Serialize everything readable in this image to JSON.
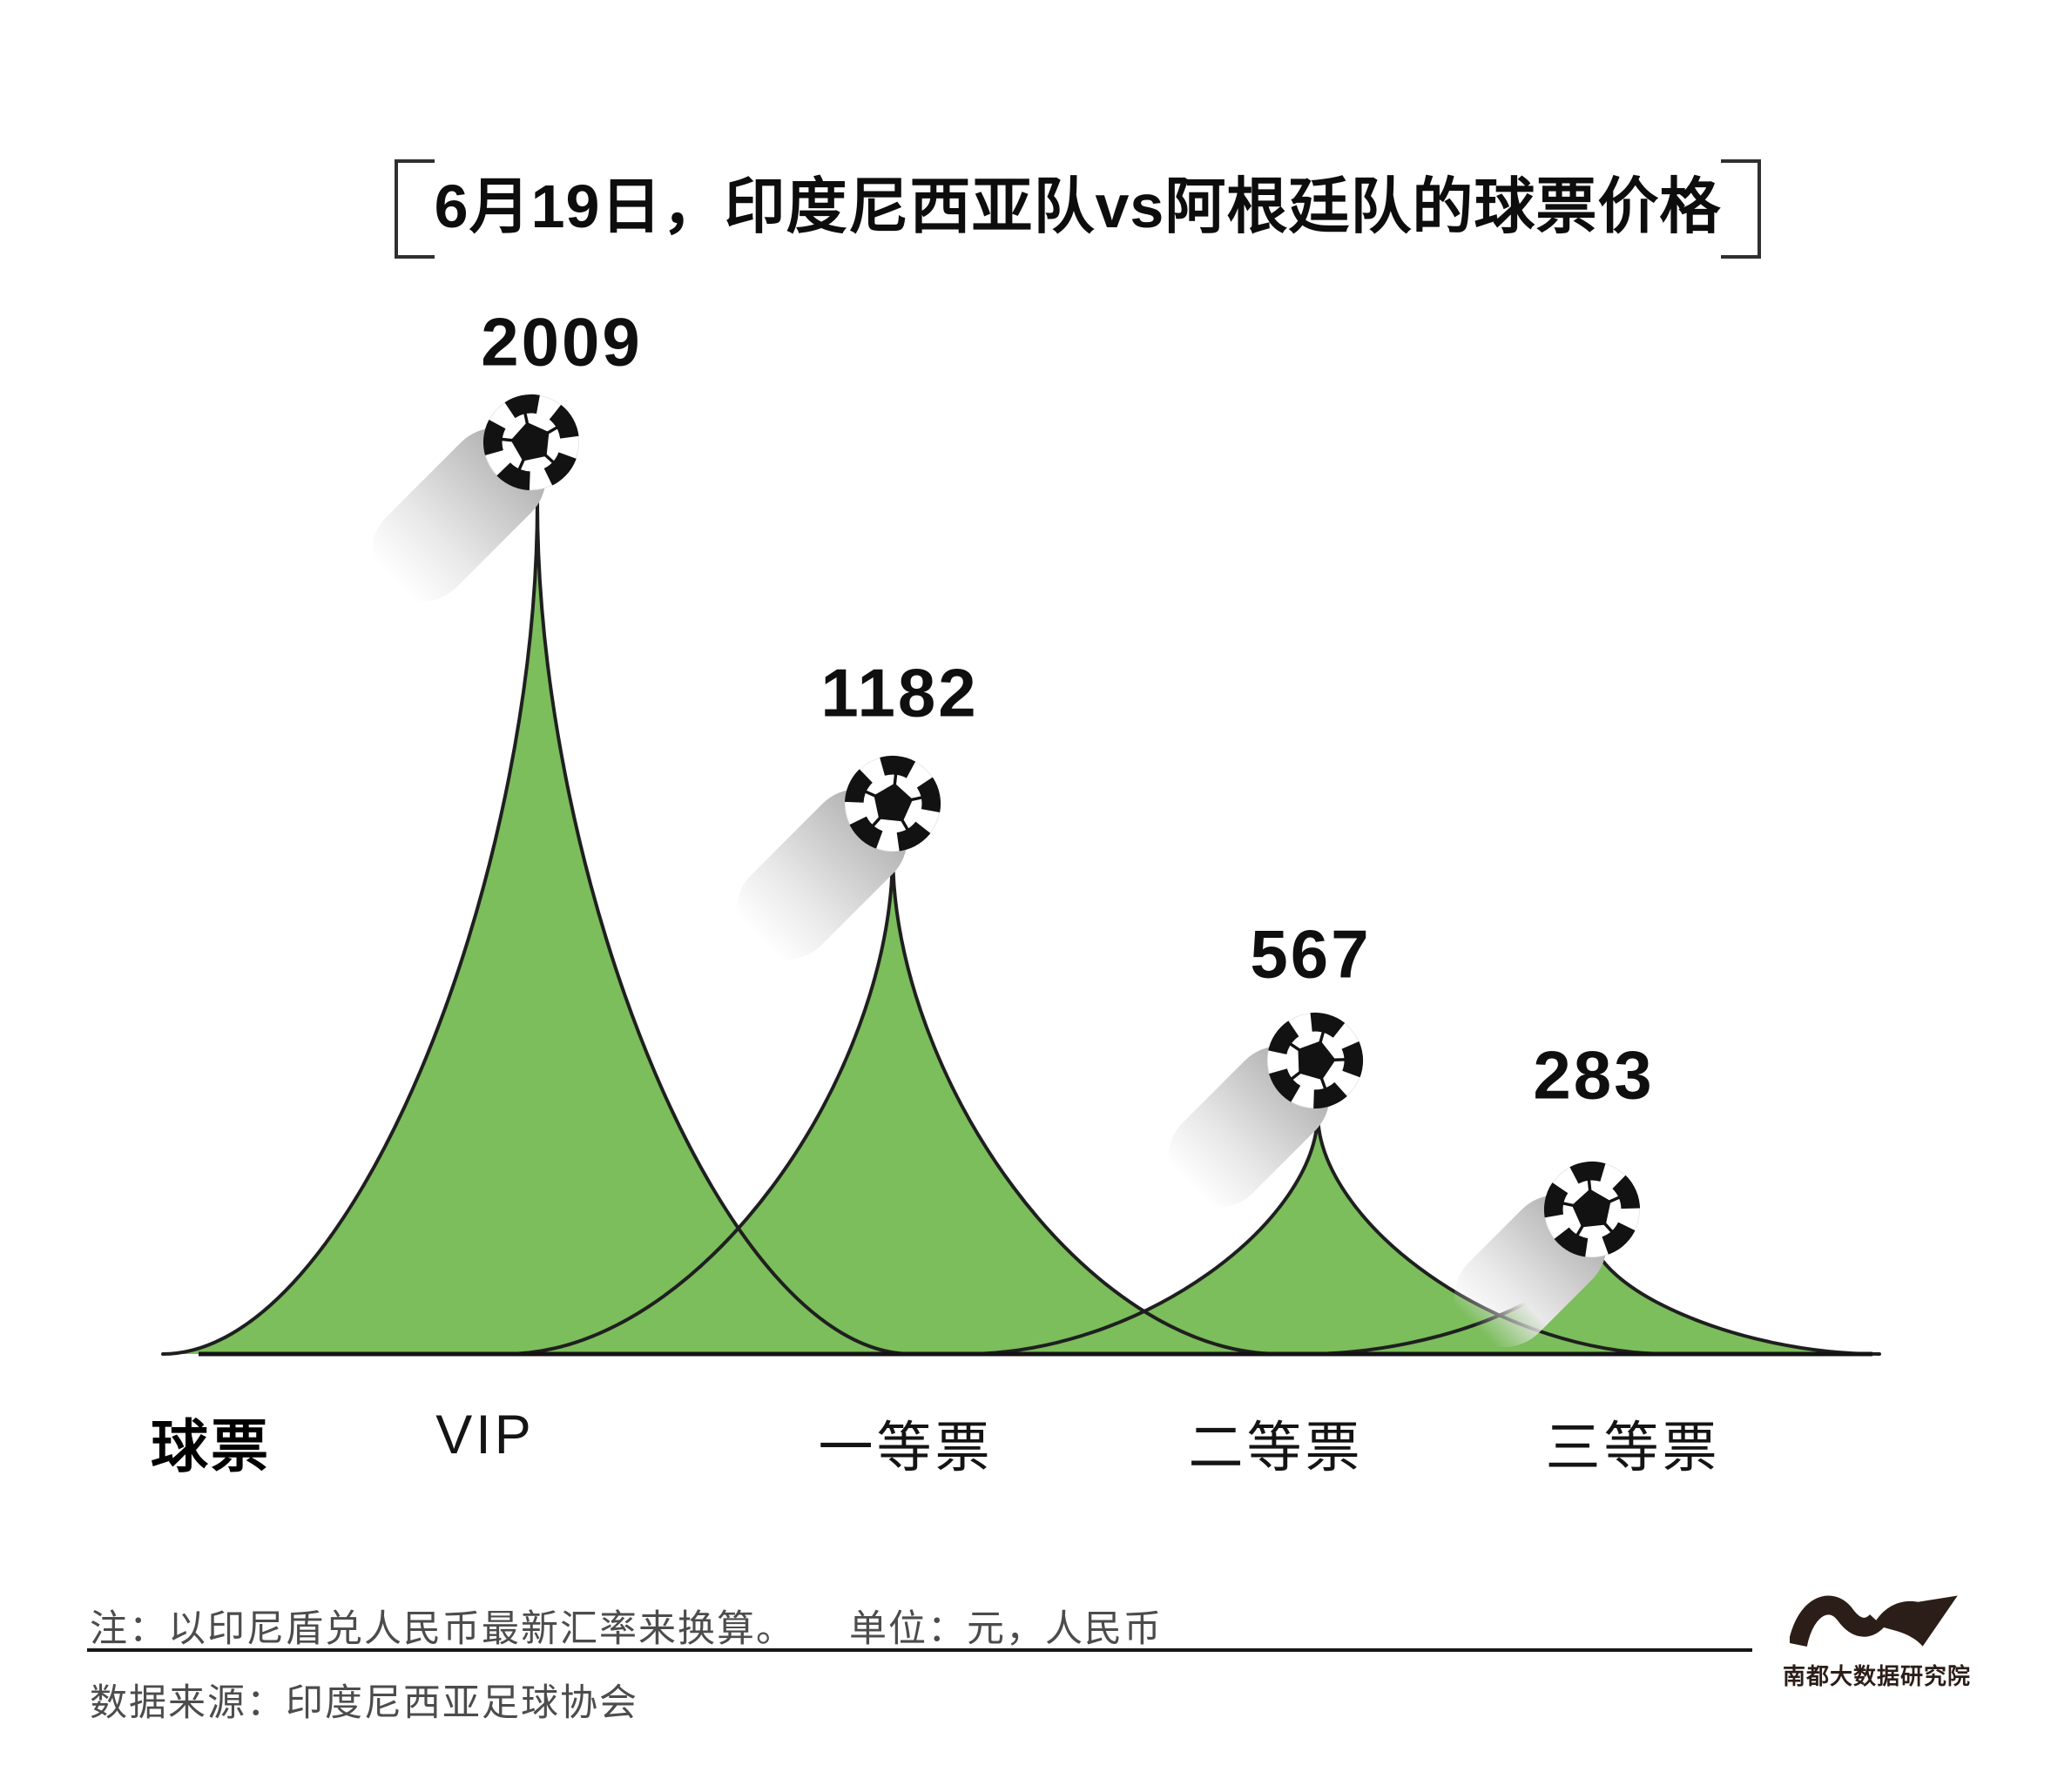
{
  "title": {
    "text": "6月19日，印度尼西亚队vs阿根廷队的球票价格"
  },
  "chart_data": {
    "type": "area",
    "subtype": "pictorial-spike-peaks",
    "title": "6月19日，印度尼西亚队vs阿根廷队的球票价格",
    "axis_title": "球票",
    "categories": [
      "VIP",
      "一等票",
      "二等票",
      "三等票"
    ],
    "values": [
      2009,
      1182,
      567,
      283
    ],
    "unit": "元，人民币",
    "ylim": [
      0,
      2009
    ],
    "marker": "soccer-ball",
    "grid": false,
    "legend": false,
    "colors": {
      "peak_fill": "#7cbd5c",
      "peak_stroke": "#1f1f1f",
      "baseline": "#141414",
      "ball_black": "#121212",
      "shadow_gray": "#a9a9a9",
      "text_black": "#0d0d0d",
      "note_gray": "#4c4c4c",
      "logo_brown": "#2b1d17"
    }
  },
  "footer": {
    "note": "注：以印尼盾兑人民币最新汇率来换算。",
    "unit": "单位：元，人民币",
    "source": "数据来源：印度尼西亚足球协会"
  },
  "logo": {
    "name": "南都大数据研究院"
  }
}
